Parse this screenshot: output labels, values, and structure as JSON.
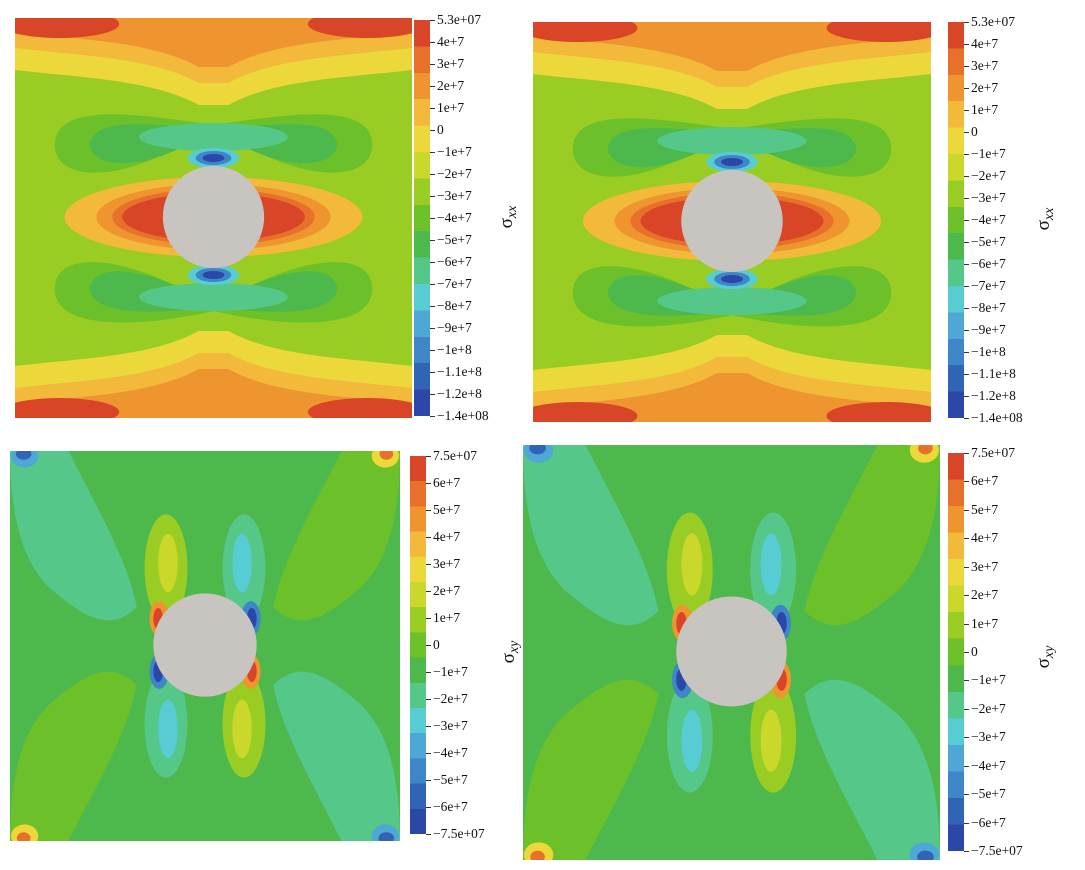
{
  "colors": {
    "background": "#ffffff",
    "hole": "#c8c5c1",
    "colormap": [
      "#2b47a8",
      "#3064b4",
      "#3e86c7",
      "#4fa7d6",
      "#57cdd3",
      "#55c788",
      "#4db84b",
      "#6cc12a",
      "#9acd23",
      "#c9d82a",
      "#ecd83a",
      "#f2b93a",
      "#ef9530",
      "#e7702b",
      "#d84527"
    ]
  },
  "plots": [
    {
      "id": "sxx-left",
      "quantity": "σ",
      "subscript": "xx",
      "variant": "xx",
      "ticks": [
        "5.3e+07",
        "4e+7",
        "3e+7",
        "2e+7",
        "1e+7",
        "0",
        "−1e+7",
        "−2e+7",
        "−3e+7",
        "−4e+7",
        "−5e+7",
        "−6e+7",
        "−7e+7",
        "−8e+7",
        "−9e+7",
        "−1e+8",
        "−1.1e+8",
        "−1.2e+8",
        "−1.4e+08"
      ]
    },
    {
      "id": "sxx-right",
      "quantity": "σ",
      "subscript": "xx",
      "variant": "xx",
      "ticks": [
        "5.3e+07",
        "4e+7",
        "3e+7",
        "2e+7",
        "1e+7",
        "0",
        "−1e+7",
        "−2e+7",
        "−3e+7",
        "−4e+7",
        "−5e+7",
        "−6e+7",
        "−7e+7",
        "−8e+7",
        "−9e+7",
        "−1e+8",
        "−1.1e+8",
        "−1.2e+8",
        "−1.4e+08"
      ]
    },
    {
      "id": "sxy-left",
      "quantity": "σ",
      "subscript": "xy",
      "variant": "xy",
      "ticks": [
        "7.5e+07",
        "6e+7",
        "5e+7",
        "4e+7",
        "3e+7",
        "2e+7",
        "1e+7",
        "0",
        "−1e+7",
        "−2e+7",
        "−3e+7",
        "−4e+7",
        "−5e+7",
        "−6e+7",
        "−7.5e+07"
      ]
    },
    {
      "id": "sxy-right",
      "quantity": "σ",
      "subscript": "xy",
      "variant": "xy",
      "ticks": [
        "7.5e+07",
        "6e+7",
        "5e+7",
        "4e+7",
        "3e+7",
        "2e+7",
        "1e+7",
        "0",
        "−1e+7",
        "−2e+7",
        "−3e+7",
        "−4e+7",
        "−5e+7",
        "−6e+7",
        "−7.5e+07"
      ]
    }
  ]
}
